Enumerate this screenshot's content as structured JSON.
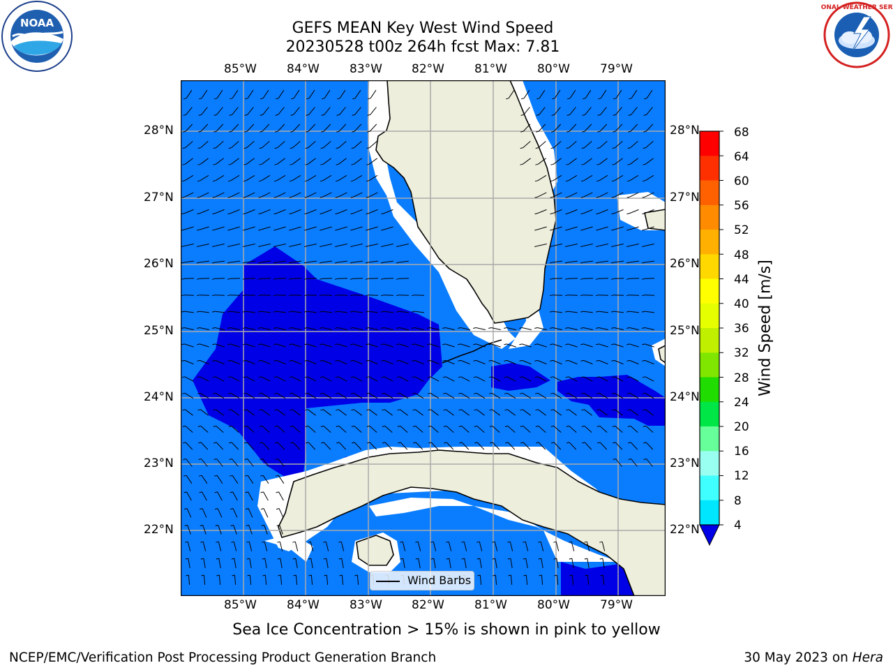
{
  "header": {
    "title_line1": "GEFS MEAN Key West Wind Speed",
    "title_line2": "20230528 t00z 264h fcst   Max: 7.81"
  },
  "logos": {
    "left_logo_text": "NOAA",
    "right_logo_text": "NATIONAL WEATHER SERVICE"
  },
  "map": {
    "lon_labels": [
      "85°W",
      "84°W",
      "83°W",
      "82°W",
      "81°W",
      "80°W",
      "79°W"
    ],
    "lat_labels": [
      "28°N",
      "27°N",
      "26°N",
      "25°N",
      "24°N",
      "23°N",
      "22°N"
    ],
    "legend_label": "Wind Barbs",
    "colors": {
      "ocean_fill": "#0a7dff",
      "low_wind_fill": "#0000e6",
      "land": "#eeeedd",
      "grid": "#aaaaaa"
    }
  },
  "colorbar": {
    "label": "Wind Speed [m/s]",
    "ticks": [
      "68",
      "64",
      "60",
      "56",
      "52",
      "48",
      "44",
      "40",
      "36",
      "32",
      "28",
      "24",
      "20",
      "16",
      "12",
      "8",
      "4"
    ],
    "colors": [
      "#ff0000",
      "#ff2000",
      "#ff5000",
      "#ff7c00",
      "#ff9c00",
      "#ffbe00",
      "#ffe000",
      "#ffff00",
      "#e6ff00",
      "#c6ff00",
      "#a0f000",
      "#5ee600",
      "#00dc00",
      "#00e646",
      "#66ff99",
      "#99ffe0",
      "#66ffff",
      "#33ffff",
      "#00e6ff",
      "#00b4ff",
      "#0a7dff"
    ],
    "under_color": "#0000e6"
  },
  "note": "Sea Ice Concentration > 15% is shown in pink to yellow",
  "footer": {
    "left": "NCEP/EMC/Verification Post Processing Product Generation Branch",
    "right_prefix": "30 May 2023 on ",
    "right_machine": "Hera"
  }
}
